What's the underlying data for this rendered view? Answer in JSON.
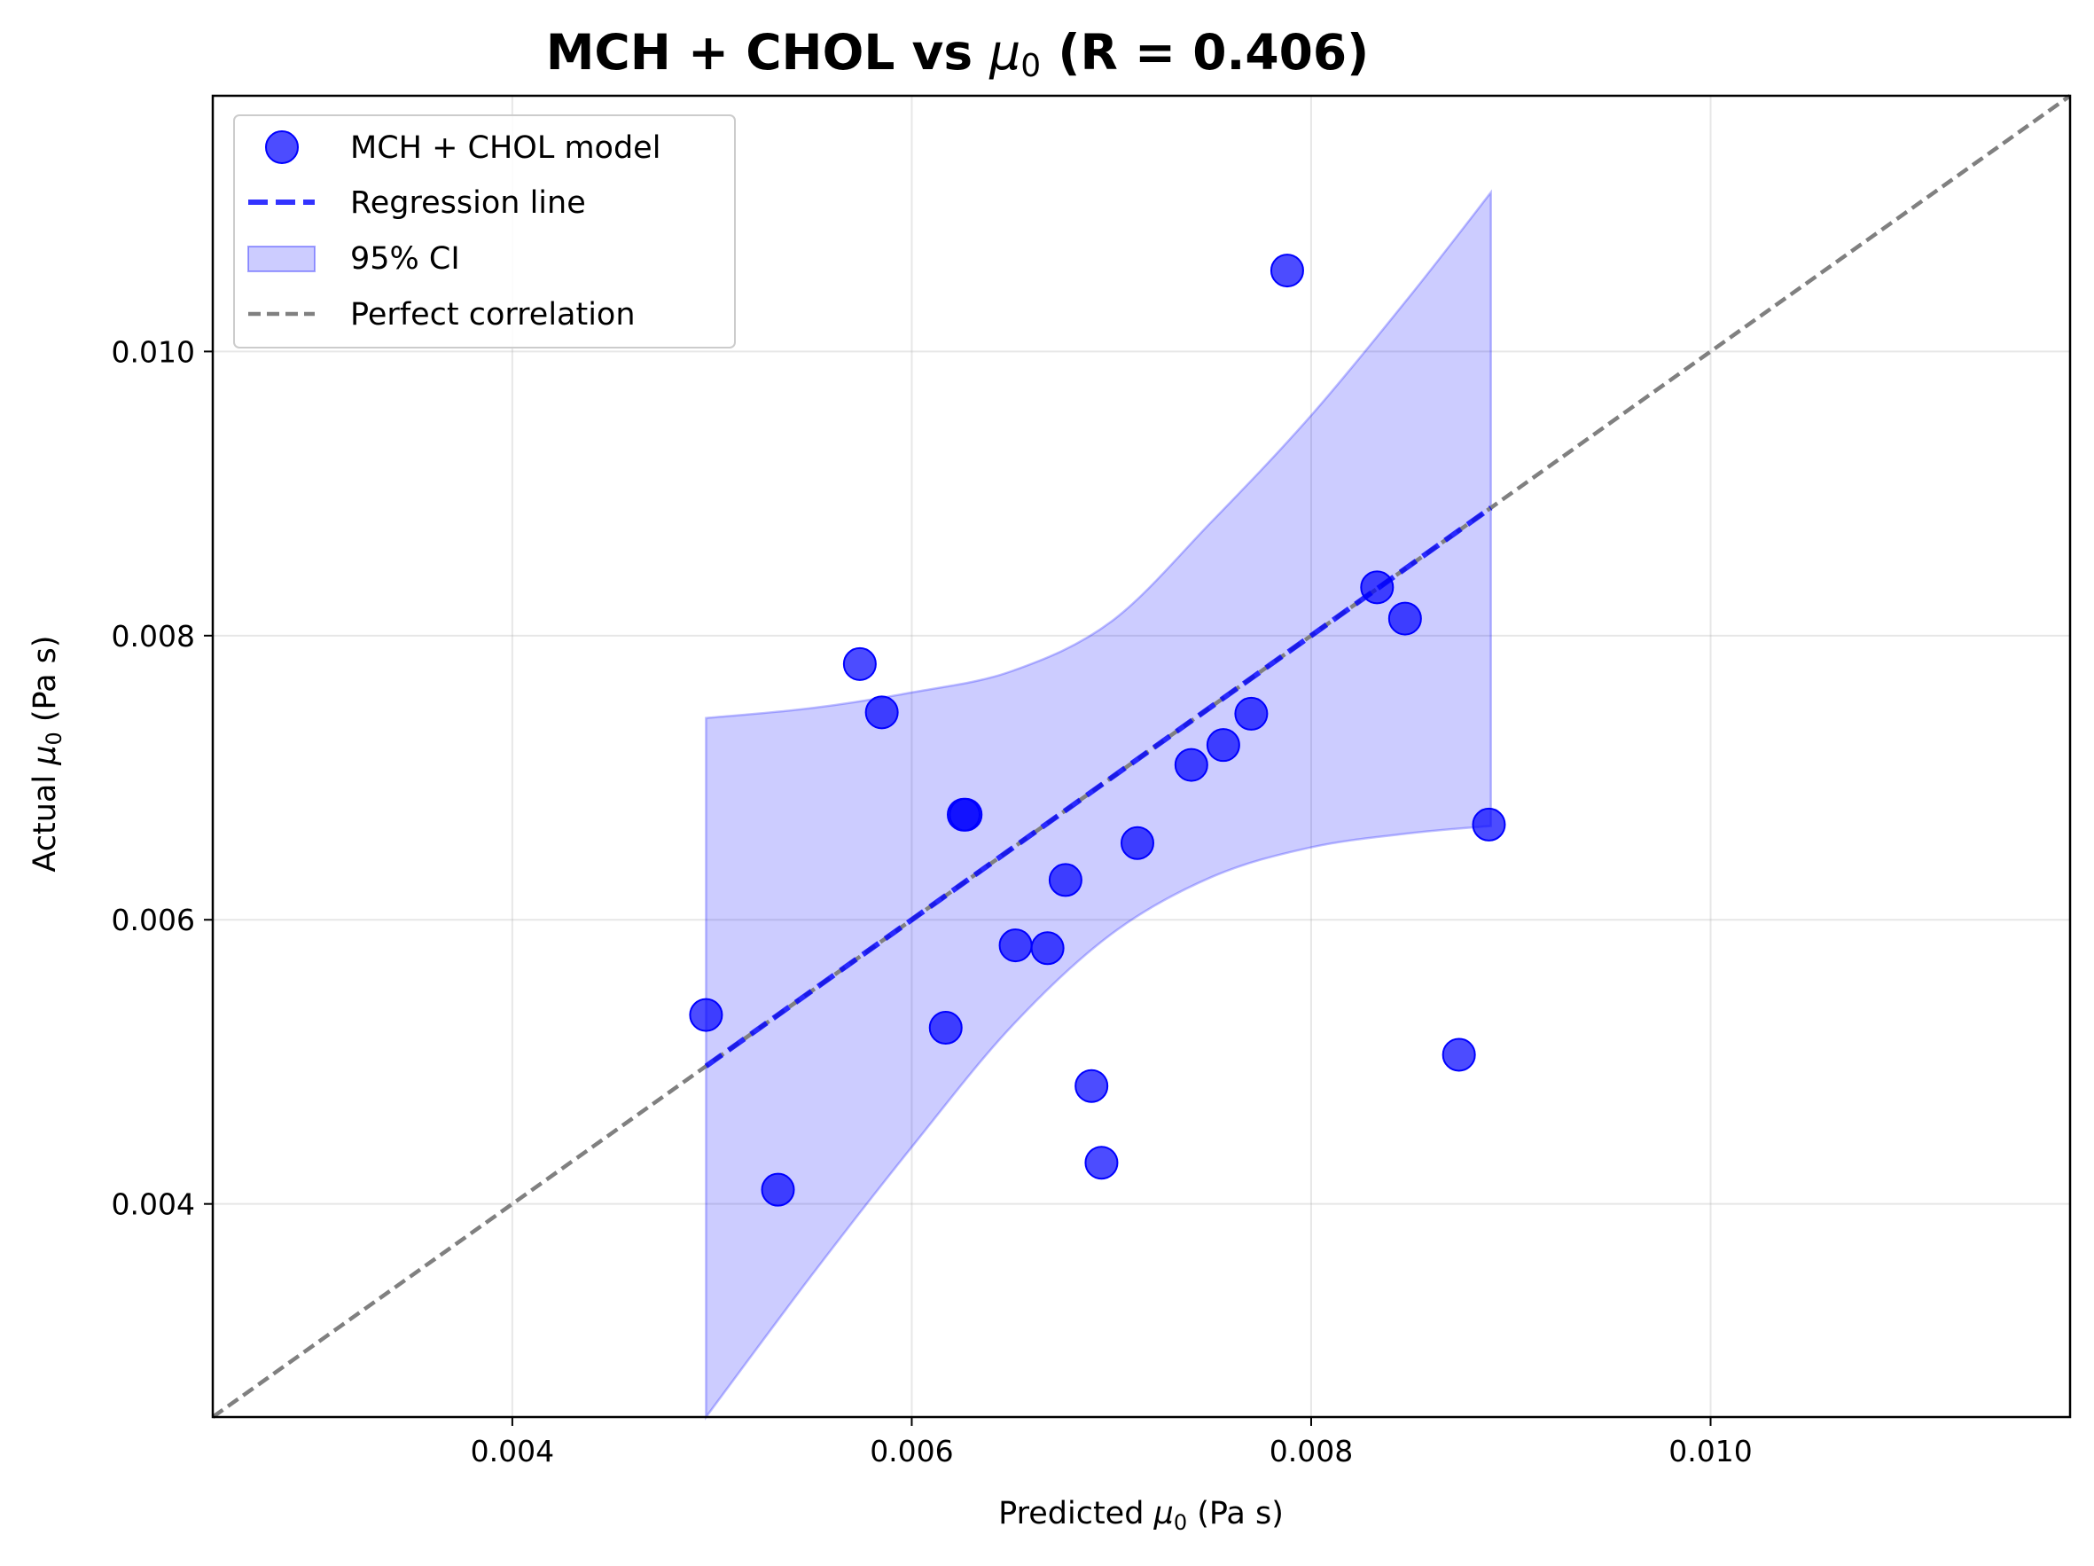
{
  "chart_data": {
    "type": "scatter",
    "title": {
      "prefix": "MCH + CHOL vs ",
      "symbol": "μ",
      "subscript": "0",
      "suffix": " (R = 0.406)"
    },
    "xlabel": {
      "prefix": "Predicted ",
      "symbol": "μ",
      "subscript": "0",
      "suffix": " (Pa s)"
    },
    "ylabel": {
      "prefix": "Actual ",
      "symbol": "μ",
      "subscript": "0",
      "suffix": " (Pa s)"
    },
    "xlim": [
      0.0025,
      0.0118
    ],
    "ylim": [
      0.0025,
      0.0118
    ],
    "x_ticks": [
      0.004,
      0.006,
      0.008,
      0.01
    ],
    "y_ticks": [
      0.004,
      0.006,
      0.008,
      0.01
    ],
    "x_tick_labels": [
      "0.004",
      "0.006",
      "0.008",
      "0.010"
    ],
    "y_tick_labels": [
      "0.004",
      "0.006",
      "0.008",
      "0.010"
    ],
    "grid": true,
    "legend_position": "top-left",
    "legend": [
      {
        "key": "scatter",
        "label": "MCH + CHOL model"
      },
      {
        "key": "regression",
        "label": "Regression line"
      },
      {
        "key": "ci",
        "label": "95% CI"
      },
      {
        "key": "identity",
        "label": "Perfect correlation"
      }
    ],
    "colors": {
      "points": "#0000ff",
      "regression": "#0000ff",
      "ci_fill": "#0000ff",
      "identity": "#808080"
    },
    "points": [
      {
        "x": 0.00497,
        "y": 0.00533
      },
      {
        "x": 0.00533,
        "y": 0.0041
      },
      {
        "x": 0.00574,
        "y": 0.0078
      },
      {
        "x": 0.00585,
        "y": 0.00746
      },
      {
        "x": 0.00617,
        "y": 0.00524
      },
      {
        "x": 0.00626,
        "y": 0.00674
      },
      {
        "x": 0.00627,
        "y": 0.00674
      },
      {
        "x": 0.00652,
        "y": 0.00582
      },
      {
        "x": 0.00668,
        "y": 0.0058
      },
      {
        "x": 0.00677,
        "y": 0.00628
      },
      {
        "x": 0.0069,
        "y": 0.00483
      },
      {
        "x": 0.00695,
        "y": 0.00429
      },
      {
        "x": 0.00713,
        "y": 0.00654
      },
      {
        "x": 0.0074,
        "y": 0.00709
      },
      {
        "x": 0.00756,
        "y": 0.00723
      },
      {
        "x": 0.0077,
        "y": 0.00745
      },
      {
        "x": 0.00788,
        "y": 0.01057
      },
      {
        "x": 0.00833,
        "y": 0.00834
      },
      {
        "x": 0.00847,
        "y": 0.00812
      },
      {
        "x": 0.00874,
        "y": 0.00505
      },
      {
        "x": 0.00889,
        "y": 0.00667
      }
    ],
    "regression": {
      "x": [
        0.00497,
        0.0089
      ],
      "y": [
        0.00497,
        0.0089
      ]
    },
    "ci_band": {
      "x": [
        0.00497,
        0.0055,
        0.006,
        0.0065,
        0.007,
        0.0075,
        0.008,
        0.0085,
        0.0089
      ],
      "upper": [
        0.00742,
        0.00749,
        0.0076,
        0.00775,
        0.0081,
        0.0088,
        0.00955,
        0.0104,
        0.01112
      ],
      "lower": [
        0.0025,
        0.0035,
        0.0044,
        0.00525,
        0.0059,
        0.0063,
        0.00651,
        0.00661,
        0.00666
      ]
    }
  }
}
